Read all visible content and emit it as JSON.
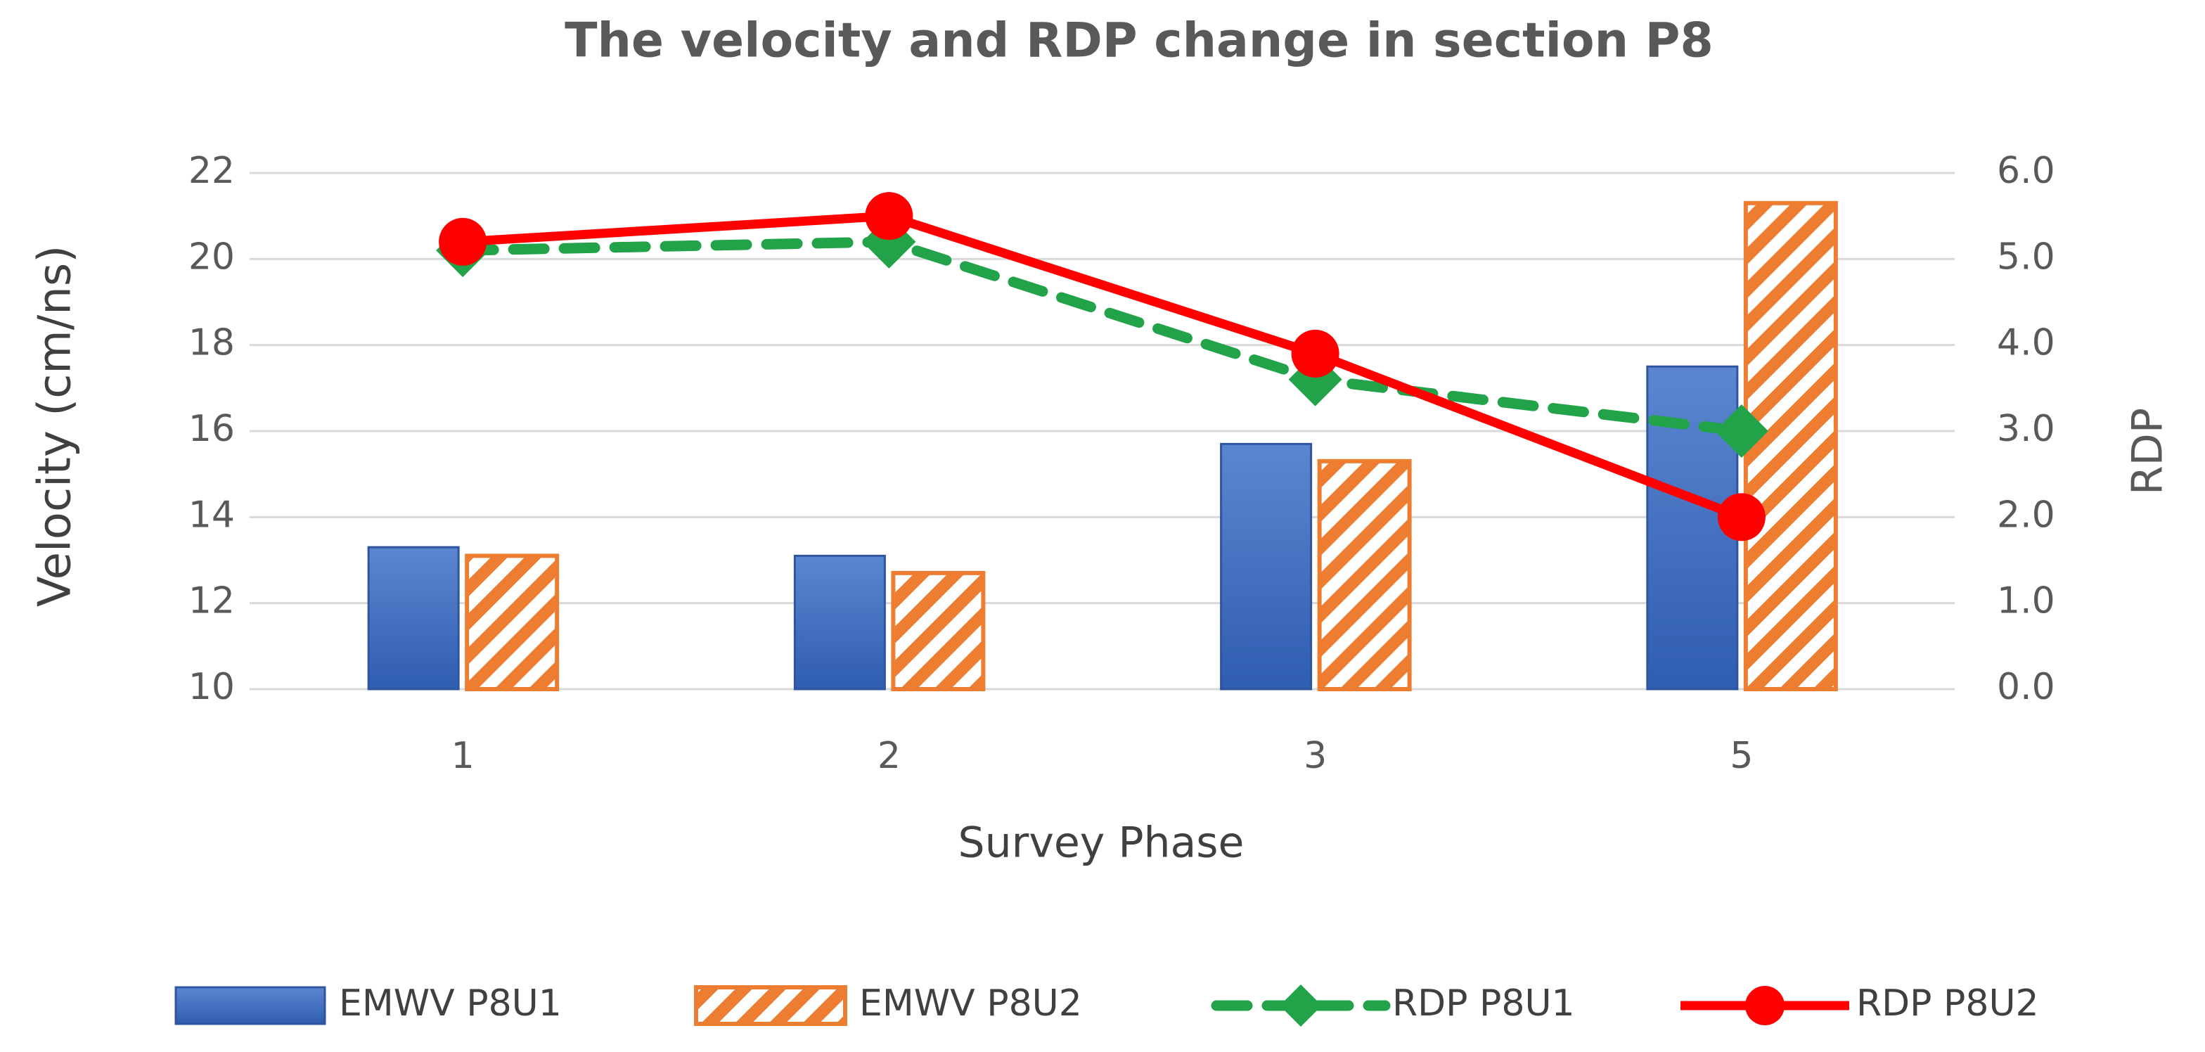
{
  "chart_data": {
    "type": "bar",
    "title": "The velocity and RDP change in section P8",
    "xlabel": "Survey Phase",
    "ylabel": "Velocity  (cm/ns)",
    "y2label": "RDP",
    "categories": [
      "1",
      "2",
      "3",
      "5"
    ],
    "ylim": [
      10,
      22
    ],
    "y_ticks": [
      "10",
      "12",
      "14",
      "16",
      "18",
      "20",
      "22"
    ],
    "y2lim": [
      0,
      6
    ],
    "y2_ticks": [
      "0.0",
      "1.0",
      "2.0",
      "3.0",
      "4.0",
      "5.0",
      "6.0"
    ],
    "grid": true,
    "legend_position": "bottom",
    "series": [
      {
        "name": "EMWV P8U1",
        "type": "bar",
        "axis": "left",
        "values": [
          13.3,
          13.1,
          15.7,
          17.5
        ],
        "color": "#4472C4",
        "pattern": "solid"
      },
      {
        "name": "EMWV P8U2",
        "type": "bar",
        "axis": "left",
        "values": [
          13.1,
          12.7,
          15.3,
          21.3
        ],
        "color": "#ED7D31",
        "pattern": "diagonal-hatch"
      },
      {
        "name": "RDP P8U1",
        "type": "line",
        "axis": "right",
        "values": [
          5.1,
          5.2,
          3.6,
          3.0
        ],
        "color": "#22A34A",
        "line_style": "dashed",
        "marker": "diamond"
      },
      {
        "name": "RDP P8U2",
        "type": "line",
        "axis": "right",
        "values": [
          5.2,
          5.5,
          3.9,
          2.0
        ],
        "color": "#FF0000",
        "line_style": "solid",
        "marker": "circle"
      }
    ]
  }
}
